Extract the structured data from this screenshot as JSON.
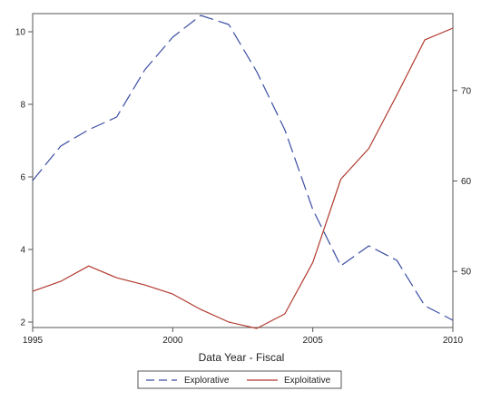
{
  "chart_data": {
    "type": "line",
    "xlabel": "Data Year - Fiscal",
    "x": [
      1995,
      1996,
      1997,
      1998,
      1999,
      2000,
      2001,
      2002,
      2003,
      2004,
      2005,
      2006,
      2007,
      2008,
      2009,
      2010
    ],
    "xlim": [
      1995,
      2010
    ],
    "x_ticks": [
      "1995",
      "2000",
      "2005",
      "2010"
    ],
    "y_left_ticks": [
      "2",
      "4",
      "6",
      "8",
      "10"
    ],
    "y_left_lim": [
      1.85,
      10.5
    ],
    "y_right_ticks": [
      "50",
      "60",
      "70"
    ],
    "y_right_lim": [
      43.8,
      78.5
    ],
    "grid": false,
    "legend_position": "bottom-center",
    "series": [
      {
        "name": "Explorative",
        "axis": "left",
        "style": "dashed",
        "color": "#3b4ea3",
        "values": [
          5.9,
          6.85,
          7.3,
          7.65,
          8.95,
          9.85,
          10.45,
          10.2,
          8.9,
          7.3,
          5.1,
          3.55,
          4.1,
          3.7,
          2.45,
          2.05
        ]
      },
      {
        "name": "Exploitative",
        "axis": "right",
        "style": "solid",
        "color": "#b03a2e",
        "values": [
          47.8,
          48.9,
          50.6,
          49.3,
          48.5,
          47.5,
          45.8,
          44.4,
          43.7,
          45.3,
          51.0,
          60.2,
          63.6,
          69.5,
          75.6,
          76.9
        ]
      }
    ]
  }
}
